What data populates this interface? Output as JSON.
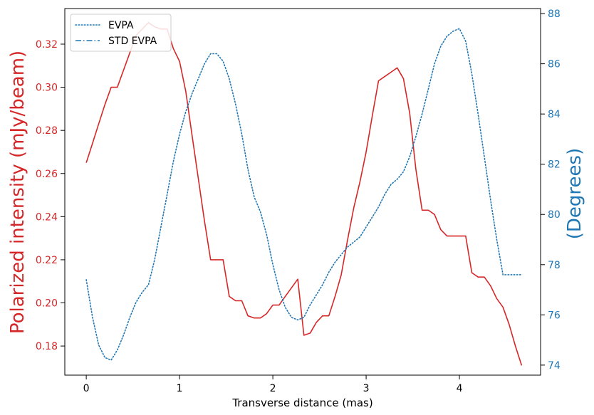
{
  "chart_data": {
    "type": "line",
    "xlabel": "Transverse distance (mas)",
    "ylabel_left": "Polarized intensity (mJy/beam)",
    "ylabel_right": "(Degrees)",
    "xlim": [
      -0.23,
      4.87
    ],
    "ylim_left": [
      0.1665,
      0.3365
    ],
    "ylim_right": [
      73.6,
      88.2
    ],
    "x_ticks": [
      0,
      1,
      2,
      3,
      4
    ],
    "y_left_ticks": [
      0.18,
      0.2,
      0.22,
      0.24,
      0.26,
      0.28,
      0.3,
      0.32
    ],
    "y_left_tick_labels": [
      "0.18",
      "0.20",
      "0.22",
      "0.24",
      "0.26",
      "0.28",
      "0.30",
      "0.32"
    ],
    "y_right_ticks": [
      74,
      76,
      78,
      80,
      82,
      84,
      86,
      88
    ],
    "grid": false,
    "legend_position": "top-left",
    "colors": {
      "pi": "#d62728",
      "evpa": "#1f77b4",
      "std": "#1f77b4"
    },
    "series": [
      {
        "name": "",
        "axis": "left",
        "style": "solid",
        "color": "#d62728",
        "x": [
          0.0,
          0.067,
          0.133,
          0.2,
          0.267,
          0.333,
          0.4,
          0.467,
          0.533,
          0.6,
          0.667,
          0.733,
          0.8,
          0.867,
          0.933,
          1.0,
          1.067,
          1.133,
          1.2,
          1.267,
          1.333,
          1.4,
          1.467,
          1.533,
          1.6,
          1.667,
          1.733,
          1.8,
          1.867,
          1.933,
          2.0,
          2.067,
          2.133,
          2.2,
          2.267,
          2.333,
          2.4,
          2.467,
          2.533,
          2.6,
          2.667,
          2.733,
          2.8,
          2.867,
          2.933,
          3.0,
          3.067,
          3.133,
          3.2,
          3.267,
          3.333,
          3.4,
          3.467,
          3.533,
          3.6,
          3.667,
          3.733,
          3.8,
          3.867,
          3.933,
          4.0,
          4.067,
          4.133,
          4.2,
          4.267,
          4.333,
          4.4,
          4.467,
          4.533,
          4.6,
          4.667
        ],
        "values": [
          0.265,
          0.274,
          0.283,
          0.292,
          0.3,
          0.3,
          0.308,
          0.316,
          0.324,
          0.327,
          0.33,
          0.328,
          0.327,
          0.327,
          0.318,
          0.312,
          0.298,
          0.278,
          0.258,
          0.238,
          0.22,
          0.22,
          0.22,
          0.203,
          0.201,
          0.201,
          0.194,
          0.193,
          0.193,
          0.195,
          0.199,
          0.199,
          0.203,
          0.207,
          0.211,
          0.185,
          0.186,
          0.191,
          0.194,
          0.194,
          0.203,
          0.213,
          0.229,
          0.244,
          0.256,
          0.27,
          0.287,
          0.303,
          0.305,
          0.307,
          0.309,
          0.304,
          0.288,
          0.262,
          0.243,
          0.243,
          0.241,
          0.234,
          0.231,
          0.231,
          0.231,
          0.231,
          0.214,
          0.212,
          0.212,
          0.208,
          0.202,
          0.198,
          0.19,
          0.18,
          0.171
        ]
      },
      {
        "name": "EVPA",
        "axis": "right",
        "style": "dotted",
        "color": "#1f77b4",
        "x": [
          0.0,
          0.067,
          0.133,
          0.2,
          0.267,
          0.333,
          0.4,
          0.467,
          0.533,
          0.6,
          0.667,
          0.733,
          0.8,
          0.867,
          0.933,
          1.0,
          1.067,
          1.133,
          1.2,
          1.267,
          1.333,
          1.4,
          1.467,
          1.533,
          1.6,
          1.667,
          1.733,
          1.8,
          1.867,
          1.933,
          2.0,
          2.067,
          2.133,
          2.2,
          2.267,
          2.333,
          2.4,
          2.467,
          2.533,
          2.6,
          2.667,
          2.733,
          2.8,
          2.867,
          2.933,
          3.0,
          3.067,
          3.133,
          3.2,
          3.267,
          3.333,
          3.4,
          3.467,
          3.533,
          3.6,
          3.667,
          3.733,
          3.8,
          3.867,
          3.933,
          4.0,
          4.067,
          4.133,
          4.2,
          4.267,
          4.333,
          4.4,
          4.467,
          4.533,
          4.6,
          4.667
        ],
        "values": [
          77.4,
          75.9,
          74.8,
          74.3,
          74.2,
          74.6,
          75.2,
          75.9,
          76.5,
          76.9,
          77.2,
          78.2,
          79.5,
          80.8,
          82.1,
          83.2,
          84.1,
          84.8,
          85.4,
          86.0,
          86.4,
          86.4,
          86.1,
          85.4,
          84.4,
          83.2,
          81.8,
          80.7,
          80.1,
          79.2,
          78.0,
          77.0,
          76.3,
          75.9,
          75.8,
          75.9,
          76.4,
          76.8,
          77.2,
          77.7,
          78.1,
          78.4,
          78.7,
          78.9,
          79.1,
          79.5,
          79.9,
          80.3,
          80.8,
          81.2,
          81.4,
          81.7,
          82.3,
          83.1,
          84.0,
          85.0,
          86.0,
          86.7,
          87.1,
          87.3,
          87.4,
          86.9,
          85.6,
          84.0,
          82.3,
          80.6,
          79.0,
          77.6,
          77.6,
          77.6,
          77.6
        ],
        "note": ""
      },
      {
        "name": "STD EVPA",
        "axis": "right",
        "style": "dashdot",
        "color": "#1f77b4",
        "x": [],
        "values": []
      }
    ]
  }
}
